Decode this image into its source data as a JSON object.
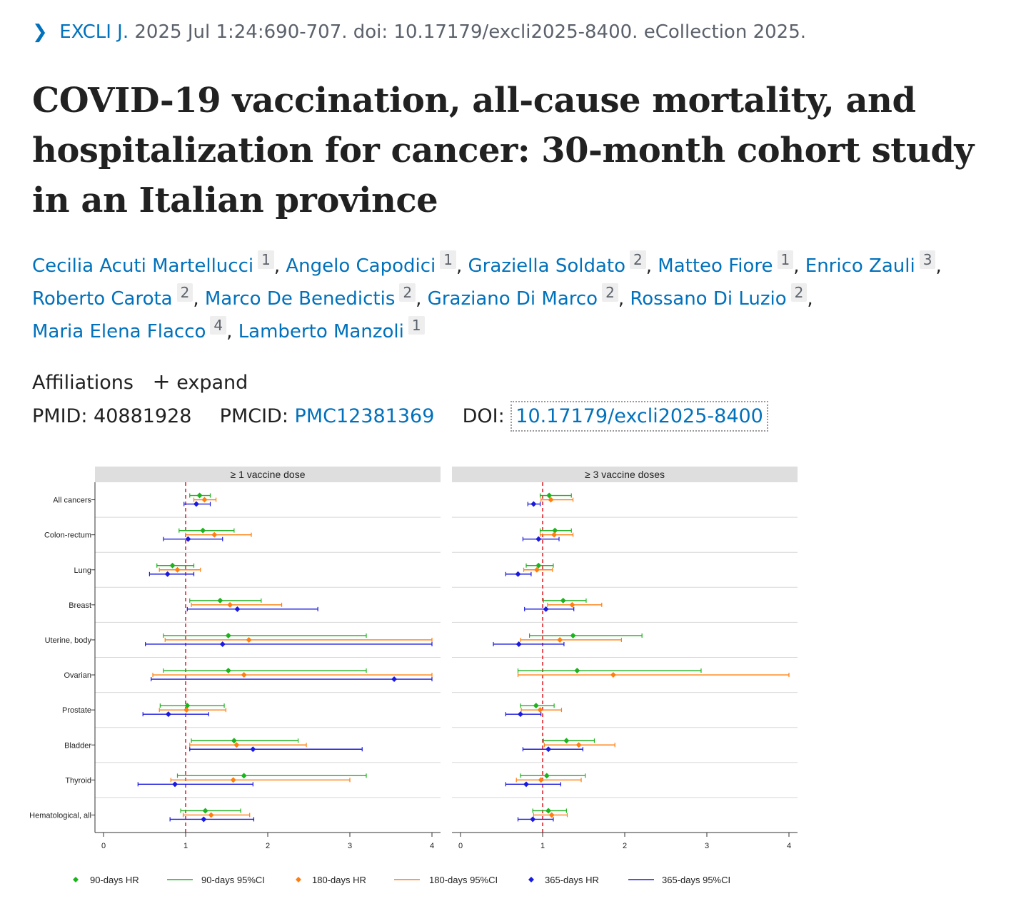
{
  "citation": {
    "journal": "EXCLI J.",
    "details": "2025 Jul 1:24:690-707. doi: 10.17179/excli2025-8400. eCollection 2025."
  },
  "title": "COVID-19 vaccination, all-cause mortality, and hospitalization for cancer: 30-month cohort study in an Italian province",
  "authors": [
    {
      "name": "Cecilia Acuti Martellucci",
      "aff": "1"
    },
    {
      "name": "Angelo Capodici",
      "aff": "1"
    },
    {
      "name": "Graziella Soldato",
      "aff": "2"
    },
    {
      "name": "Matteo Fiore",
      "aff": "1"
    },
    {
      "name": "Enrico Zauli",
      "aff": "3"
    },
    {
      "name": "Roberto Carota",
      "aff": "2"
    },
    {
      "name": "Marco De Benedictis",
      "aff": "2"
    },
    {
      "name": "Graziano Di Marco",
      "aff": "2"
    },
    {
      "name": "Rossano Di Luzio",
      "aff": "2"
    },
    {
      "name": "Maria Elena Flacco",
      "aff": "4"
    },
    {
      "name": "Lamberto Manzoli",
      "aff": "1"
    }
  ],
  "affiliations": {
    "label": "Affiliations",
    "toggle": "expand"
  },
  "identifiers": {
    "pmid_label": "PMID:",
    "pmid": "40881928",
    "pmcid_label": "PMCID:",
    "pmcid": "PMC12381369",
    "doi_label": "DOI:",
    "doi": "10.17179/excli2025-8400"
  },
  "colors": {
    "link": "#0071bc",
    "s90": "#1db31d",
    "s180": "#ff7f0e",
    "s365": "#1a1adf",
    "ref": "#e3262e"
  },
  "chart_data": {
    "type": "forest",
    "categories": [
      "All cancers",
      "Colon-rectum",
      "Lung",
      "Breast",
      "Uterine, body",
      "Ovarian",
      "Prostate",
      "Bladder",
      "Thyroid",
      "Hematological, all"
    ],
    "xlim": [
      0,
      4
    ],
    "xticks": [
      0,
      1,
      2,
      3,
      4
    ],
    "reference_line": 1,
    "legend_position": "bottom",
    "legend": [
      "90-days HR",
      "90-days 95%CI",
      "180-days HR",
      "180-days 95%CI",
      "365-days HR",
      "365-days 95%CI"
    ],
    "panels": [
      {
        "title": "≥ 1 vaccine dose",
        "series": [
          {
            "name": "90-days",
            "hr": [
              1.17,
              1.21,
              0.84,
              1.42,
              1.52,
              1.52,
              1.02,
              1.59,
              1.71,
              1.24
            ],
            "lo": [
              1.05,
              0.92,
              0.65,
              1.05,
              0.73,
              0.73,
              0.69,
              1.07,
              0.9,
              0.94
            ],
            "hi": [
              1.3,
              1.59,
              1.1,
              1.92,
              3.2,
              3.2,
              1.47,
              2.37,
              3.2,
              1.67
            ]
          },
          {
            "name": "180-days",
            "hr": [
              1.23,
              1.35,
              0.9,
              1.54,
              1.77,
              1.71,
              1.01,
              1.62,
              1.58,
              1.31
            ],
            "lo": [
              1.1,
              1.0,
              0.68,
              1.07,
              0.75,
              0.6,
              0.68,
              1.05,
              0.82,
              0.97
            ],
            "hi": [
              1.37,
              1.8,
              1.18,
              2.17,
              4.0,
              4.0,
              1.49,
              2.47,
              3.0,
              1.78
            ]
          },
          {
            "name": "365-days",
            "hr": [
              1.13,
              1.03,
              0.78,
              1.63,
              1.45,
              3.54,
              0.79,
              1.82,
              0.87,
              1.22
            ],
            "lo": [
              0.98,
              0.73,
              0.56,
              1.02,
              0.51,
              0.58,
              0.48,
              1.05,
              0.42,
              0.81
            ],
            "hi": [
              1.3,
              1.45,
              1.1,
              2.61,
              4.0,
              4.0,
              1.28,
              3.15,
              1.82,
              1.83
            ]
          }
        ]
      },
      {
        "title": "≥ 3 vaccine doses",
        "series": [
          {
            "name": "90-days",
            "hr": [
              1.08,
              1.15,
              0.95,
              1.25,
              1.37,
              1.42,
              0.92,
              1.29,
              1.05,
              1.07
            ],
            "lo": [
              0.97,
              0.97,
              0.8,
              1.01,
              0.84,
              0.7,
              0.73,
              1.01,
              0.73,
              0.88
            ],
            "hi": [
              1.35,
              1.35,
              1.13,
              1.53,
              2.21,
              2.93,
              1.14,
              1.63,
              1.52,
              1.29
            ]
          },
          {
            "name": "180-days",
            "hr": [
              1.1,
              1.14,
              0.93,
              1.36,
              1.21,
              1.86,
              0.97,
              1.44,
              0.98,
              1.11
            ],
            "lo": [
              0.98,
              0.97,
              0.77,
              1.06,
              0.73,
              0.7,
              0.74,
              1.02,
              0.68,
              0.89
            ],
            "hi": [
              1.37,
              1.37,
              1.12,
              1.72,
              1.96,
              4.0,
              1.23,
              1.88,
              1.47,
              1.3
            ]
          },
          {
            "name": "365-days",
            "hr": [
              0.89,
              0.95,
              0.7,
              1.04,
              0.71,
              null,
              0.73,
              1.07,
              0.8,
              0.88
            ],
            "lo": [
              0.82,
              0.76,
              0.55,
              0.78,
              0.4,
              null,
              0.55,
              0.76,
              0.55,
              0.7
            ],
            "hi": [
              0.97,
              1.2,
              0.86,
              1.38,
              1.26,
              null,
              0.98,
              1.49,
              1.22,
              1.13
            ]
          }
        ]
      }
    ]
  }
}
